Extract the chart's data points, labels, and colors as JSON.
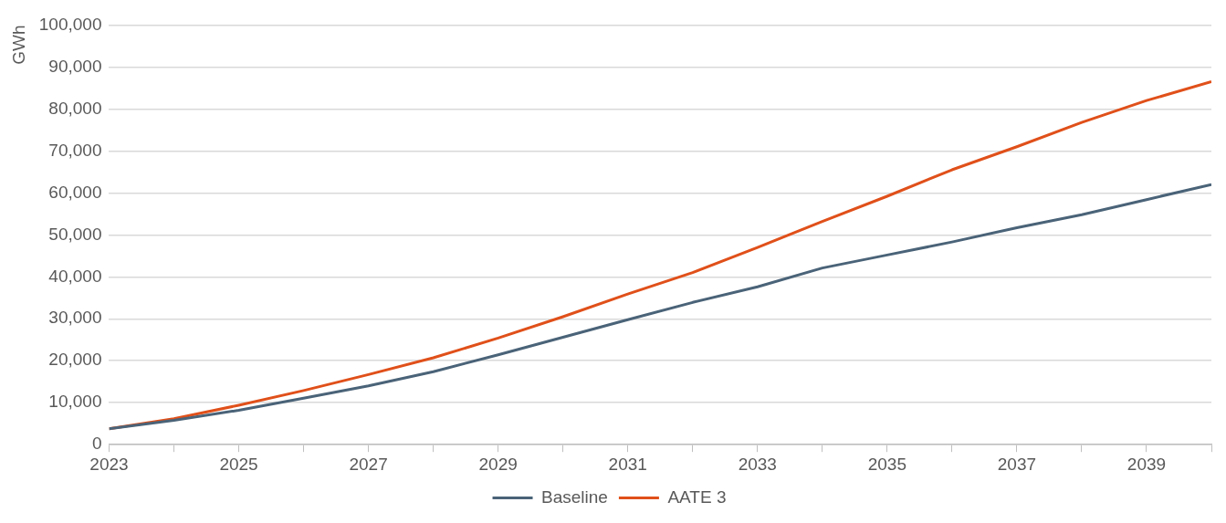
{
  "chart_data": {
    "type": "line",
    "ylabel": "GWh",
    "x": [
      2023,
      2024,
      2025,
      2026,
      2027,
      2028,
      2029,
      2030,
      2031,
      2032,
      2033,
      2034,
      2035,
      2036,
      2037,
      2038,
      2039,
      2040
    ],
    "series": [
      {
        "name": "Baseline",
        "color": "#4a6378",
        "values": [
          3800,
          5800,
          8200,
          11100,
          14000,
          17400,
          21400,
          25600,
          29800,
          33900,
          37600,
          42100,
          45200,
          48300,
          51700,
          54800,
          58400,
          62000
        ]
      },
      {
        "name": "AATE 3",
        "color": "#e0501a",
        "values": [
          3800,
          6200,
          9400,
          12900,
          16700,
          20700,
          25400,
          30500,
          35900,
          41000,
          47000,
          53200,
          59200,
          65500,
          71000,
          76800,
          82000,
          86500
        ]
      }
    ],
    "xlim": [
      2023,
      2040
    ],
    "xticks": [
      2023,
      {
        "value": 2024,
        "label": null
      },
      2025,
      {
        "value": 2026,
        "label": null
      },
      2027,
      {
        "value": 2028,
        "label": null
      },
      2029,
      {
        "value": 2030,
        "label": null
      },
      2031,
      {
        "value": 2032,
        "label": null
      },
      2033,
      {
        "value": 2034,
        "label": null
      },
      2035,
      {
        "value": 2036,
        "label": null
      },
      2037,
      {
        "value": 2038,
        "label": null
      },
      2039,
      {
        "value": 2040,
        "label": null
      }
    ],
    "ylim": [
      0,
      100000
    ],
    "yticks": [
      {
        "value": 0,
        "label": "0"
      },
      {
        "value": 10000,
        "label": "10,000"
      },
      {
        "value": 20000,
        "label": "20,000"
      },
      {
        "value": 30000,
        "label": "30,000"
      },
      {
        "value": 40000,
        "label": "40,000"
      },
      {
        "value": 50000,
        "label": "50,000"
      },
      {
        "value": 60000,
        "label": "60,000"
      },
      {
        "value": 70000,
        "label": "70,000"
      },
      {
        "value": 80000,
        "label": "80,000"
      },
      {
        "value": 90000,
        "label": "90,000"
      },
      {
        "value": 100000,
        "label": "100,000"
      }
    ],
    "grid": "y",
    "legend": "bottom",
    "marker": "none",
    "line_style": "solid"
  }
}
